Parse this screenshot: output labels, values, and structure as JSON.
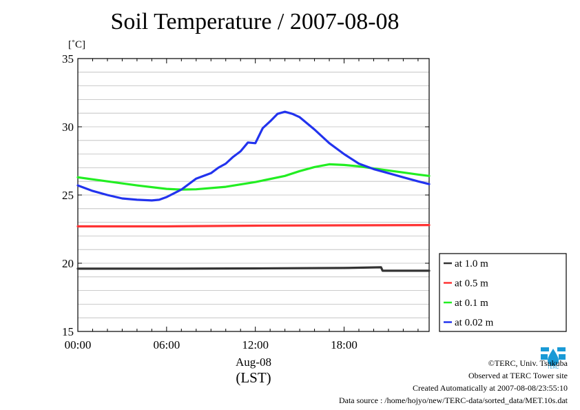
{
  "chart_data": {
    "type": "line",
    "title": "Soil Temperature / 2007-08-08",
    "ylabel": "[˚C]",
    "ylim": [
      15,
      35
    ],
    "yticks": [
      15,
      20,
      25,
      30,
      35
    ],
    "xlim": [
      0,
      23.75
    ],
    "xticks": [
      {
        "x": 0,
        "label": "00:00"
      },
      {
        "x": 6,
        "label": "06:00"
      },
      {
        "x": 12,
        "label": "12:00"
      },
      {
        "x": 18,
        "label": "18:00"
      }
    ],
    "xsublabel": "Aug-08",
    "xunit": "(LST)",
    "grid": true,
    "legend_position": "right",
    "series": [
      {
        "name": "at 1.0 m",
        "color": "#333333",
        "x": [
          0,
          6,
          12,
          18,
          20.5,
          20.6,
          23.75
        ],
        "y": [
          19.6,
          19.6,
          19.62,
          19.65,
          19.7,
          19.45,
          19.45
        ]
      },
      {
        "name": "at 0.5 m",
        "color": "#ff3333",
        "x": [
          0,
          6,
          12,
          18,
          23.75
        ],
        "y": [
          22.7,
          22.7,
          22.75,
          22.78,
          22.8
        ]
      },
      {
        "name": "at 0.1 m",
        "color": "#22ee22",
        "x": [
          0,
          2,
          4,
          6,
          7,
          8,
          10,
          12,
          14,
          15,
          16,
          17,
          18,
          19,
          20,
          21,
          22,
          23,
          23.75
        ],
        "y": [
          26.3,
          26.0,
          25.7,
          25.45,
          25.4,
          25.42,
          25.6,
          25.95,
          26.4,
          26.75,
          27.05,
          27.25,
          27.2,
          27.1,
          26.95,
          26.8,
          26.65,
          26.5,
          26.4
        ]
      },
      {
        "name": "at 0.02 m",
        "color": "#2233ee",
        "x": [
          0,
          1,
          2,
          3,
          4,
          5,
          5.5,
          6,
          7,
          8,
          9,
          9.5,
          10,
          10.5,
          11,
          11.5,
          12,
          12.5,
          13,
          13.5,
          14,
          14.5,
          15,
          16,
          17,
          18,
          19,
          20,
          21,
          22,
          23,
          23.75
        ],
        "y": [
          25.7,
          25.3,
          25.0,
          24.75,
          24.65,
          24.6,
          24.65,
          24.85,
          25.4,
          26.2,
          26.6,
          27.0,
          27.3,
          27.8,
          28.2,
          28.85,
          28.8,
          29.9,
          30.4,
          30.95,
          31.1,
          30.95,
          30.7,
          29.8,
          28.8,
          28.0,
          27.3,
          26.9,
          26.6,
          26.3,
          26.0,
          25.8
        ]
      }
    ]
  },
  "footer": {
    "copyright": "©TERC, Univ. Tsukuba",
    "site": "Observed at TERC Tower site",
    "created": "Created Automatically at 2007-08-08/23:55:10",
    "source": "Data source : /home/hojyo/new/TERC-data/sorted_data/MET.10s.dat"
  },
  "logo": {
    "text": "TERC",
    "color": "#1a9ad6"
  }
}
